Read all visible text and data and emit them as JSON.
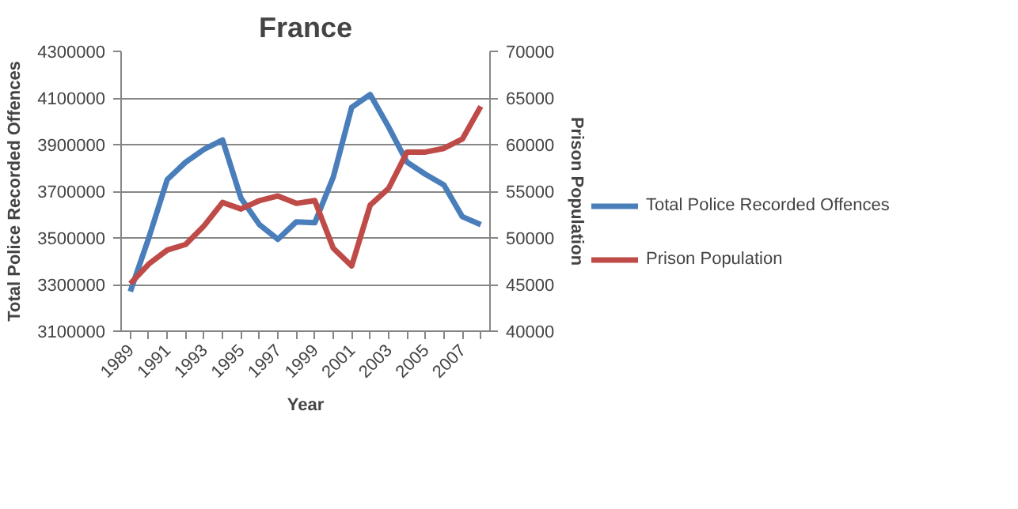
{
  "chart_data": {
    "type": "line",
    "title": "France",
    "xlabel": "Year",
    "ylabel": "Total Police Recorded Offences",
    "y2label": "Prison Population",
    "x": [
      1989,
      1990,
      1991,
      1992,
      1993,
      1994,
      1995,
      1996,
      1997,
      1998,
      1999,
      2000,
      2001,
      2002,
      2003,
      2004,
      2005,
      2006,
      2007,
      2008
    ],
    "series": [
      {
        "name": "Total Police Recorded Offences",
        "color": "#4a7ebb",
        "values": [
          3270000,
          3500000,
          3750000,
          3825000,
          3880000,
          3920000,
          3670000,
          3557000,
          3494000,
          3569000,
          3565000,
          3760000,
          4060000,
          4115000,
          3976000,
          3825000,
          3773000,
          3727000,
          3591000,
          3557000
        ]
      },
      {
        "name": "Prison Population",
        "color": "#be4b48",
        "axis": "y2",
        "values": [
          45100,
          47200,
          48700,
          49300,
          51300,
          53800,
          53100,
          54000,
          54500,
          53700,
          54000,
          48900,
          47000,
          53500,
          55300,
          59200,
          59200,
          59600,
          60600,
          64100
        ]
      }
    ],
    "xlim": [
      1988.5,
      2008.5
    ],
    "xticks": [
      {
        "value": 1989,
        "label": "1989"
      },
      {
        "value": 1990,
        "label": null
      },
      {
        "value": 1991,
        "label": "1991"
      },
      {
        "value": 1992,
        "label": null
      },
      {
        "value": 1993,
        "label": "1993"
      },
      {
        "value": 1994,
        "label": null
      },
      {
        "value": 1995,
        "label": "1995"
      },
      {
        "value": 1996,
        "label": null
      },
      {
        "value": 1997,
        "label": "1997"
      },
      {
        "value": 1998,
        "label": null
      },
      {
        "value": 1999,
        "label": "1999"
      },
      {
        "value": 2000,
        "label": null
      },
      {
        "value": 2001,
        "label": "2001"
      },
      {
        "value": 2002,
        "label": null
      },
      {
        "value": 2003,
        "label": "2003"
      },
      {
        "value": 2004,
        "label": null
      },
      {
        "value": 2005,
        "label": "2005"
      },
      {
        "value": 2006,
        "label": null
      },
      {
        "value": 2007,
        "label": "2007"
      },
      {
        "value": 2008,
        "label": null
      }
    ],
    "ylim": [
      3100000,
      4300000
    ],
    "yticks": [
      3100000,
      3300000,
      3500000,
      3700000,
      3900000,
      4100000,
      4300000
    ],
    "y2lim": [
      40000,
      70000
    ],
    "y2ticks": [
      40000,
      45000,
      50000,
      55000,
      60000,
      65000,
      70000
    ],
    "grid": "y",
    "legend": "right",
    "marker": "none",
    "line_style": "solid"
  }
}
